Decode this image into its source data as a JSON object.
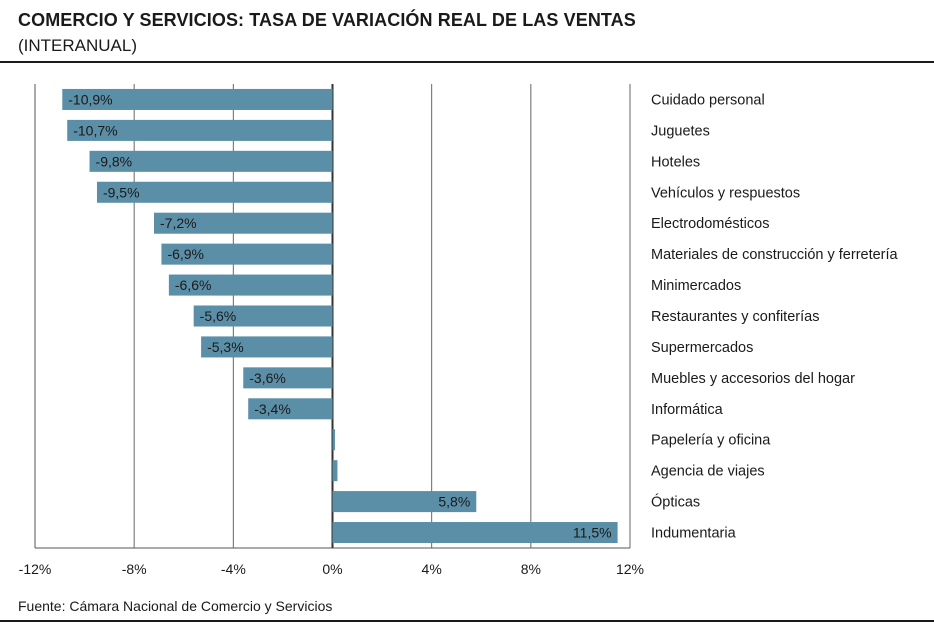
{
  "header": {
    "title": "COMERCIO Y SERVICIOS: TASA DE VARIACIÓN REAL DE LAS VENTAS",
    "subtitle": "(INTERANUAL)"
  },
  "footer": {
    "source": "Fuente: Cámara Nacional de Comercio y Servicios"
  },
  "chart_data": {
    "type": "bar",
    "orientation": "horizontal",
    "categories": [
      "Cuidado personal",
      "Juguetes",
      "Hoteles",
      "Vehículos y respuestos",
      "Electrodomésticos",
      "Materiales de construcción y ferretería",
      "Minimercados",
      "Restaurantes y confiterías",
      "Supermercados",
      "Muebles y accesorios del hogar",
      "Informática",
      "Papelería y oficina",
      "Agencia de viajes",
      "Ópticas",
      "Indumentaria"
    ],
    "values": [
      -10.9,
      -10.7,
      -9.8,
      -9.5,
      -7.2,
      -6.9,
      -6.6,
      -5.6,
      -5.3,
      -3.6,
      -3.4,
      0.1,
      0.2,
      5.8,
      11.5
    ],
    "value_labels": [
      "-10,9%",
      "-10,7%",
      "-9,8%",
      "-9,5%",
      "-7,2%",
      "-6,9%",
      "-6,6%",
      "-5,6%",
      "-5,3%",
      "-3,6%",
      "-3,4%",
      "",
      "",
      "5,8%",
      "11,5%"
    ],
    "xlim": [
      -12,
      12
    ],
    "xticks": [
      -12,
      -8,
      -4,
      0,
      4,
      8,
      12
    ],
    "xtick_labels": [
      "-12%",
      "-8%",
      "-4%",
      "0%",
      "4%",
      "8%",
      "12%"
    ],
    "grid": true,
    "bar_color": "#5b8fa8"
  }
}
